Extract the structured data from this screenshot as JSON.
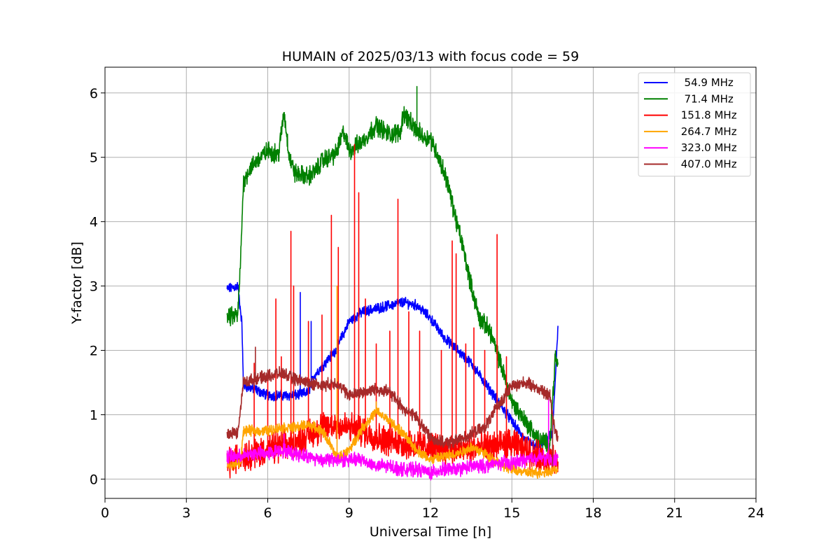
{
  "chart_data": {
    "type": "line",
    "title": "HUMAIN of 2025/03/13 with focus code = 59",
    "xlabel": "Universal Time [h]",
    "ylabel": "Y-factor [dB]",
    "xlim": [
      0,
      24
    ],
    "ylim": [
      -0.3,
      6.4
    ],
    "xticks": [
      0,
      3,
      6,
      9,
      12,
      15,
      18,
      21,
      24
    ],
    "yticks": [
      0,
      1,
      2,
      3,
      4,
      5,
      6
    ],
    "grid": true,
    "legend_position": "top-right",
    "series": [
      {
        "name": "  54.9 MHz",
        "color": "#0000ff",
        "noise": 0.12,
        "points": [
          [
            4.5,
            2.95
          ],
          [
            4.9,
            3.0
          ],
          [
            5.05,
            2.4
          ],
          [
            5.1,
            1.45
          ],
          [
            5.5,
            1.4
          ],
          [
            6,
            1.3
          ],
          [
            6.5,
            1.3
          ],
          [
            7,
            1.3
          ],
          [
            7.5,
            1.35
          ],
          [
            7.7,
            1.6
          ],
          [
            8,
            1.75
          ],
          [
            8.5,
            2.0
          ],
          [
            9,
            2.45
          ],
          [
            9.5,
            2.6
          ],
          [
            10,
            2.65
          ],
          [
            10.5,
            2.7
          ],
          [
            11,
            2.75
          ],
          [
            11.5,
            2.7
          ],
          [
            12,
            2.5
          ],
          [
            12.5,
            2.2
          ],
          [
            13,
            2.0
          ],
          [
            13.5,
            1.8
          ],
          [
            14,
            1.5
          ],
          [
            14.5,
            1.2
          ],
          [
            15,
            0.9
          ],
          [
            15.5,
            0.6
          ],
          [
            16,
            0.5
          ],
          [
            16.5,
            0.7
          ],
          [
            16.7,
            2.4
          ]
        ],
        "spikes": [
          [
            7.2,
            2.9
          ],
          [
            7.6,
            2.45
          ]
        ]
      },
      {
        "name": "  71.4 MHz",
        "color": "#008000",
        "noise": 0.22,
        "points": [
          [
            4.5,
            2.5
          ],
          [
            4.9,
            2.55
          ],
          [
            5.0,
            3.4
          ],
          [
            5.1,
            4.6
          ],
          [
            5.3,
            4.8
          ],
          [
            5.6,
            4.95
          ],
          [
            6,
            5.1
          ],
          [
            6.4,
            5.05
          ],
          [
            6.6,
            5.7
          ],
          [
            6.8,
            5.0
          ],
          [
            7,
            4.75
          ],
          [
            7.5,
            4.7
          ],
          [
            7.8,
            4.8
          ],
          [
            8,
            4.95
          ],
          [
            8.5,
            5.05
          ],
          [
            8.8,
            5.4
          ],
          [
            9,
            5.1
          ],
          [
            9.5,
            5.25
          ],
          [
            10,
            5.5
          ],
          [
            10.5,
            5.35
          ],
          [
            10.9,
            5.4
          ],
          [
            11,
            5.7
          ],
          [
            11.4,
            5.45
          ],
          [
            11.8,
            5.3
          ],
          [
            12,
            5.3
          ],
          [
            12.3,
            5.0
          ],
          [
            12.6,
            4.65
          ],
          [
            12.9,
            4.1
          ],
          [
            13.2,
            3.6
          ],
          [
            13.5,
            3.0
          ],
          [
            13.8,
            2.5
          ],
          [
            14.2,
            2.3
          ],
          [
            14.5,
            1.9
          ],
          [
            14.8,
            1.5
          ],
          [
            15,
            1.2
          ],
          [
            15.5,
            0.9
          ],
          [
            16,
            0.6
          ],
          [
            16.4,
            0.55
          ],
          [
            16.6,
            1.9
          ],
          [
            16.7,
            1.75
          ]
        ],
        "spikes": [
          [
            11.5,
            6.1
          ]
        ]
      },
      {
        "name": " 151.8 MHz",
        "color": "#ff0000",
        "noise": 0.35,
        "points": [
          [
            4.5,
            0.25
          ],
          [
            5,
            0.35
          ],
          [
            6,
            0.45
          ],
          [
            7,
            0.55
          ],
          [
            7.5,
            0.7
          ],
          [
            8,
            0.8
          ],
          [
            8.5,
            0.85
          ],
          [
            9,
            0.8
          ],
          [
            9.5,
            0.75
          ],
          [
            10,
            0.65
          ],
          [
            11,
            0.55
          ],
          [
            12,
            0.5
          ],
          [
            13,
            0.45
          ],
          [
            14,
            0.5
          ],
          [
            15,
            0.55
          ],
          [
            15.5,
            0.45
          ],
          [
            16,
            0.35
          ],
          [
            16.7,
            0.25
          ]
        ],
        "spikes": [
          [
            5.5,
            1.8
          ],
          [
            6.0,
            1.6
          ],
          [
            6.3,
            2.8
          ],
          [
            6.5,
            1.9
          ],
          [
            6.85,
            3.85
          ],
          [
            6.95,
            3.0
          ],
          [
            7.5,
            2.45
          ],
          [
            8.0,
            2.55
          ],
          [
            8.35,
            4.1
          ],
          [
            8.6,
            3.6
          ],
          [
            9.2,
            5.2
          ],
          [
            9.35,
            4.45
          ],
          [
            9.6,
            2.8
          ],
          [
            10.0,
            2.1
          ],
          [
            10.5,
            2.3
          ],
          [
            10.8,
            4.35
          ],
          [
            11.2,
            2.6
          ],
          [
            11.6,
            2.3
          ],
          [
            12.4,
            2.0
          ],
          [
            12.8,
            3.7
          ],
          [
            12.95,
            3.5
          ],
          [
            13.3,
            2.1
          ],
          [
            13.6,
            2.35
          ],
          [
            14.0,
            2.0
          ],
          [
            14.45,
            3.8
          ],
          [
            14.8,
            1.9
          ]
        ]
      },
      {
        "name": " 264.7 MHz",
        "color": "#ffa500",
        "noise": 0.12,
        "points": [
          [
            4.5,
            0.2
          ],
          [
            5,
            0.25
          ],
          [
            5.1,
            0.75
          ],
          [
            5.5,
            0.75
          ],
          [
            6,
            0.75
          ],
          [
            6.5,
            0.8
          ],
          [
            7,
            0.8
          ],
          [
            7.5,
            0.85
          ],
          [
            8,
            0.75
          ],
          [
            8.3,
            0.55
          ],
          [
            8.5,
            0.35
          ],
          [
            8.7,
            0.35
          ],
          [
            9,
            0.45
          ],
          [
            9.5,
            0.8
          ],
          [
            10,
            1.05
          ],
          [
            10.5,
            0.9
          ],
          [
            11,
            0.7
          ],
          [
            11.5,
            0.45
          ],
          [
            12,
            0.3
          ],
          [
            12.5,
            0.35
          ],
          [
            13,
            0.4
          ],
          [
            13.5,
            0.5
          ],
          [
            14,
            0.4
          ],
          [
            14.5,
            0.25
          ],
          [
            15,
            0.15
          ],
          [
            15.5,
            0.1
          ],
          [
            16,
            0.1
          ],
          [
            16.7,
            0.15
          ]
        ],
        "spikes": [
          [
            8.55,
            3.0
          ],
          [
            10.0,
            1.2
          ]
        ]
      },
      {
        "name": " 323.0 MHz",
        "color": "#ff00ff",
        "noise": 0.16,
        "points": [
          [
            4.5,
            0.35
          ],
          [
            5,
            0.35
          ],
          [
            5.5,
            0.4
          ],
          [
            6,
            0.4
          ],
          [
            6.5,
            0.45
          ],
          [
            7,
            0.4
          ],
          [
            7.5,
            0.35
          ],
          [
            8,
            0.3
          ],
          [
            8.5,
            0.3
          ],
          [
            9,
            0.3
          ],
          [
            9.5,
            0.3
          ],
          [
            10,
            0.2
          ],
          [
            10.5,
            0.2
          ],
          [
            11,
            0.15
          ],
          [
            11.5,
            0.15
          ],
          [
            12,
            0.1
          ],
          [
            12.5,
            0.15
          ],
          [
            13,
            0.15
          ],
          [
            13.5,
            0.2
          ],
          [
            14,
            0.2
          ],
          [
            14.5,
            0.25
          ],
          [
            15,
            0.25
          ],
          [
            15.5,
            0.3
          ],
          [
            16,
            0.35
          ],
          [
            16.4,
            0.3
          ],
          [
            16.7,
            0.3
          ]
        ],
        "spikes": [
          [
            6.6,
            0.7
          ],
          [
            16.35,
            1.3
          ]
        ]
      },
      {
        "name": " 407.0 MHz",
        "color": "#a52a2a",
        "noise": 0.14,
        "points": [
          [
            4.5,
            0.72
          ],
          [
            4.9,
            0.72
          ],
          [
            5.0,
            1.1
          ],
          [
            5.1,
            1.5
          ],
          [
            5.5,
            1.55
          ],
          [
            6,
            1.6
          ],
          [
            6.5,
            1.65
          ],
          [
            7,
            1.55
          ],
          [
            7.5,
            1.5
          ],
          [
            8,
            1.45
          ],
          [
            8.5,
            1.5
          ],
          [
            9,
            1.3
          ],
          [
            9.5,
            1.35
          ],
          [
            10,
            1.4
          ],
          [
            10.5,
            1.35
          ],
          [
            11,
            1.1
          ],
          [
            11.5,
            0.95
          ],
          [
            12,
            0.65
          ],
          [
            12.5,
            0.55
          ],
          [
            13,
            0.6
          ],
          [
            13.5,
            0.7
          ],
          [
            14,
            0.8
          ],
          [
            14.5,
            1.15
          ],
          [
            15,
            1.45
          ],
          [
            15.5,
            1.5
          ],
          [
            16,
            1.4
          ],
          [
            16.4,
            1.3
          ],
          [
            16.6,
            0.75
          ],
          [
            16.7,
            0.65
          ]
        ],
        "spikes": [
          [
            5.55,
            2.05
          ],
          [
            16.5,
            0.2
          ]
        ]
      }
    ]
  }
}
